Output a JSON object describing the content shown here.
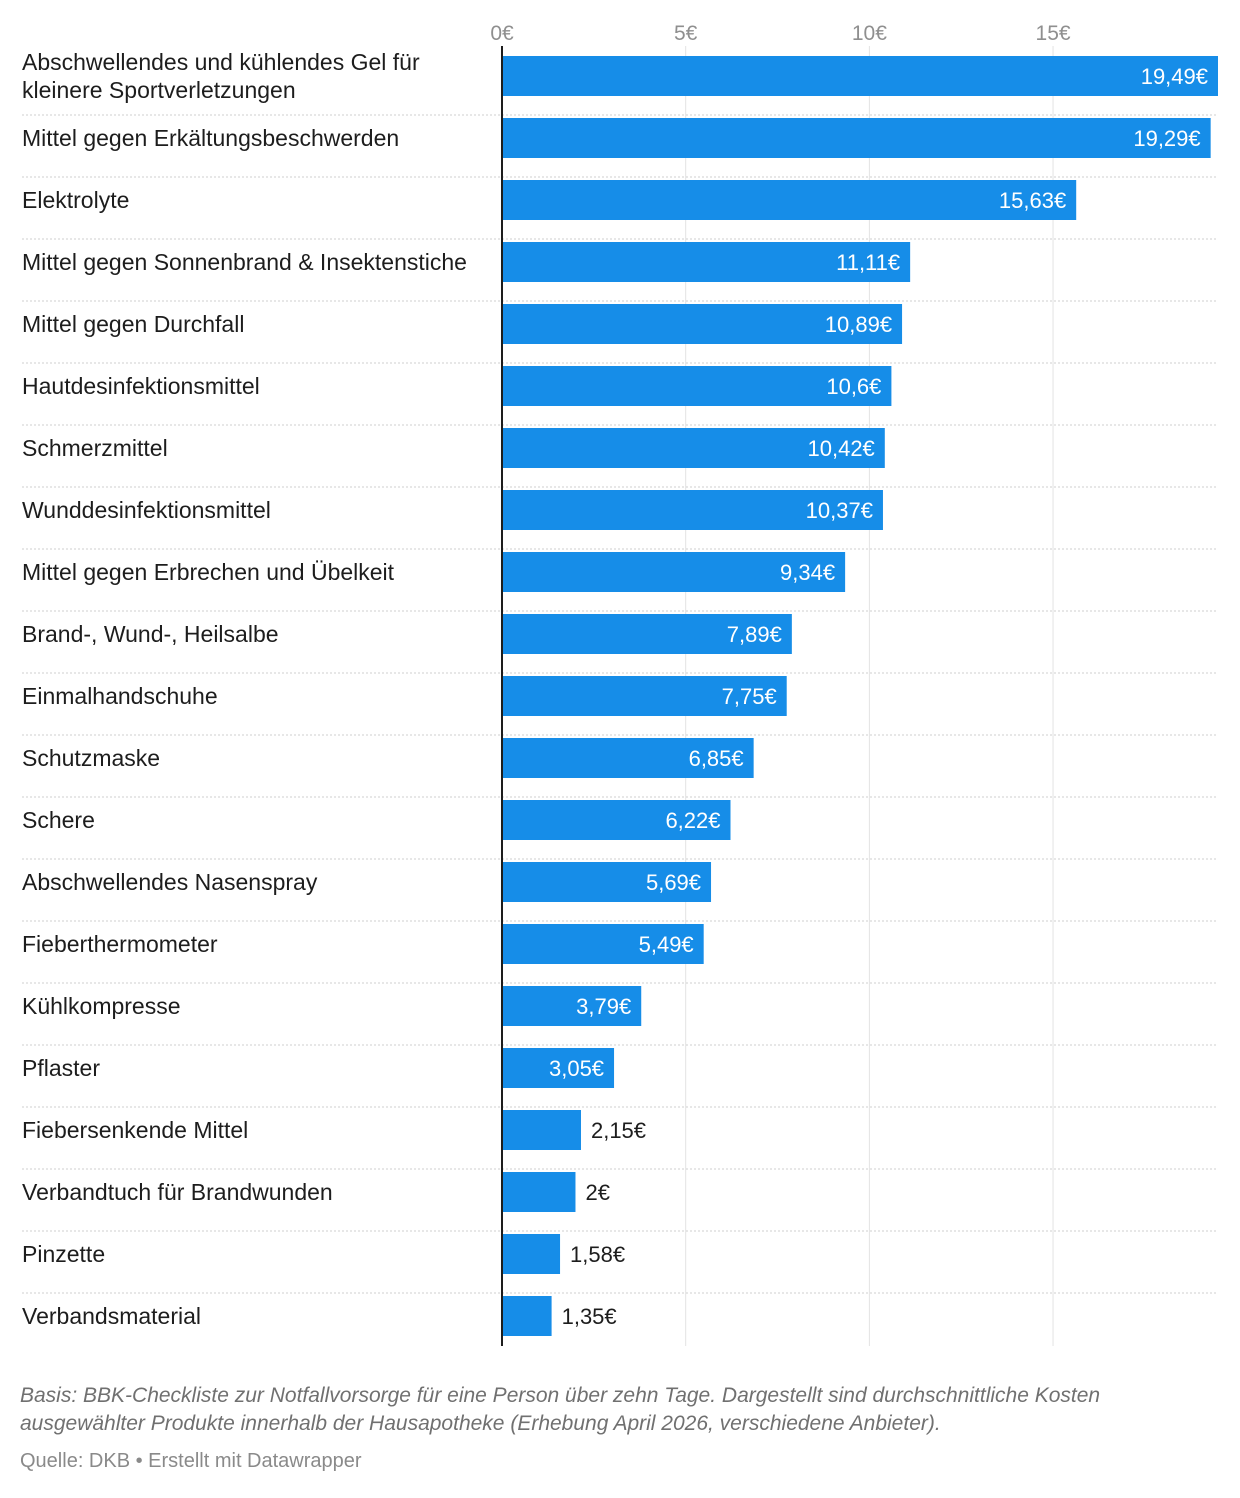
{
  "chart_data": {
    "type": "bar",
    "orientation": "horizontal",
    "categories": [
      "Abschwellendes und kühlendes Gel für kleinere Sportverletzungen",
      "Mittel gegen Erkältungsbeschwerden",
      "Elektrolyte",
      "Mittel gegen Sonnenbrand & Insektenstiche",
      "Mittel gegen Durchfall",
      "Hautdesinfektionsmittel",
      "Schmerzmittel",
      "Wunddesinfektionsmittel",
      "Mittel gegen Erbrechen und Übelkeit",
      "Brand-, Wund-, Heilsalbe",
      "Einmalhandschuhe",
      "Schutzmaske",
      "Schere",
      "Abschwellendes Nasenspray",
      "Fieberthermometer",
      "Kühlkompresse",
      "Pflaster",
      "Fiebersenkende Mittel",
      "Verbandtuch für Brandwunden",
      "Pinzette",
      "Verbandsmaterial"
    ],
    "values": [
      19.49,
      19.29,
      15.63,
      11.11,
      10.89,
      10.6,
      10.42,
      10.37,
      9.34,
      7.89,
      7.75,
      6.85,
      6.22,
      5.69,
      5.49,
      3.79,
      3.05,
      2.15,
      2,
      1.58,
      1.35
    ],
    "value_labels": [
      "19,49€",
      "19,29€",
      "15,63€",
      "11,11€",
      "10,89€",
      "10,6€",
      "10,42€",
      "10,37€",
      "9,34€",
      "7,89€",
      "7,75€",
      "6,85€",
      "6,22€",
      "5,69€",
      "5,49€",
      "3,79€",
      "3,05€",
      "2,15€",
      "2€",
      "1,58€",
      "1,35€"
    ],
    "x_ticks": [
      0,
      5,
      10,
      15
    ],
    "x_tick_labels": [
      "0€",
      "5€",
      "10€",
      "15€"
    ],
    "xlim": [
      0,
      19.49
    ],
    "grid": true,
    "bar_color": "#168de8"
  },
  "footer": {
    "notes": "Basis: BBK-Checkliste zur Notfallvorsorge für eine Person über zehn Tage. Dargestellt sind durchschnittliche Kosten ausgewählter Produkte innerhalb der Hausapotheke (Erhebung April 2026, verschiedene Anbieter).",
    "source": "Quelle: DKB • Erstellt mit Datawrapper"
  }
}
